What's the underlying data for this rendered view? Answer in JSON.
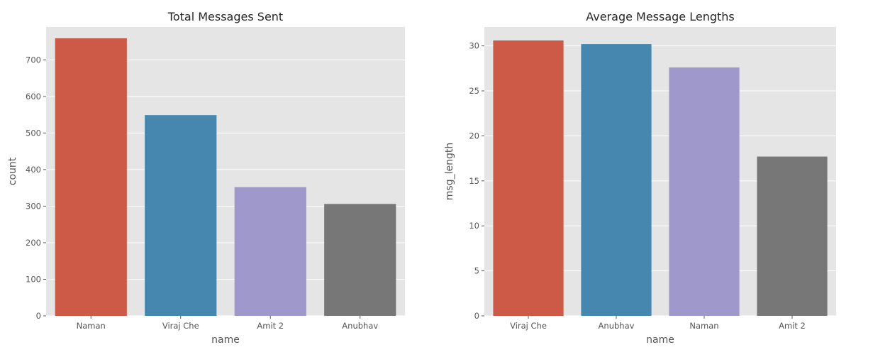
{
  "chart_data": [
    {
      "type": "bar",
      "title": "Total Messages Sent",
      "xlabel": "name",
      "ylabel": "count",
      "categories": [
        "Naman",
        "Viraj Che",
        "Amit 2",
        "Anubhav"
      ],
      "values": [
        759,
        549,
        352,
        306
      ],
      "ylim": [
        0,
        790
      ],
      "yticks": [
        0,
        100,
        200,
        300,
        400,
        500,
        600,
        700
      ],
      "grid": true,
      "colors": [
        "#cc5a47",
        "#4587ae",
        "#9e98cb",
        "#777777"
      ]
    },
    {
      "type": "bar",
      "title": "Average Message Lengths",
      "xlabel": "name",
      "ylabel": "msg_length",
      "categories": [
        "Viraj Che",
        "Anubhav",
        "Naman",
        "Amit 2"
      ],
      "values": [
        30.6,
        30.2,
        27.6,
        17.7
      ],
      "ylim": [
        0,
        32.1
      ],
      "yticks": [
        0,
        5,
        10,
        15,
        20,
        25,
        30
      ],
      "grid": true,
      "colors": [
        "#cc5a47",
        "#4587ae",
        "#9e98cb",
        "#777777"
      ]
    }
  ],
  "style": {
    "plot_background": "#e5e5e5",
    "grid_color": "#ffffff",
    "text_color": "#555555",
    "title_color": "#262626"
  }
}
